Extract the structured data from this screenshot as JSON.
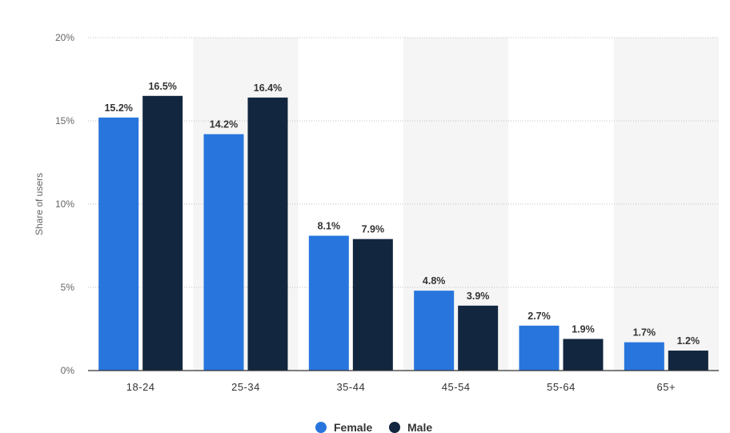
{
  "chart_data": {
    "type": "bar",
    "ylabel": "Share of users",
    "categories": [
      "18-24",
      "25-34",
      "35-44",
      "45-54",
      "55-64",
      "65+"
    ],
    "series": [
      {
        "name": "Female",
        "color": "#2876dd",
        "values": [
          15.2,
          14.2,
          8.1,
          4.8,
          2.7,
          1.7
        ],
        "labels": [
          "15.2%",
          "14.2%",
          "8.1%",
          "4.8%",
          "2.7%",
          "1.7%"
        ]
      },
      {
        "name": "Male",
        "color": "#12263f",
        "values": [
          16.5,
          16.4,
          7.9,
          3.9,
          1.9,
          1.2
        ],
        "labels": [
          "16.5%",
          "16.4%",
          "7.9%",
          "3.9%",
          "1.9%",
          "1.2%"
        ]
      }
    ],
    "ylim": [
      0,
      20
    ],
    "yticks": [
      0,
      5,
      10,
      15,
      20
    ],
    "ytick_labels": [
      "0%",
      "5%",
      "10%",
      "15%",
      "20%"
    ],
    "grid": true,
    "alternating_band_color": "#f5f5f5",
    "legend_position": "bottom-center"
  }
}
